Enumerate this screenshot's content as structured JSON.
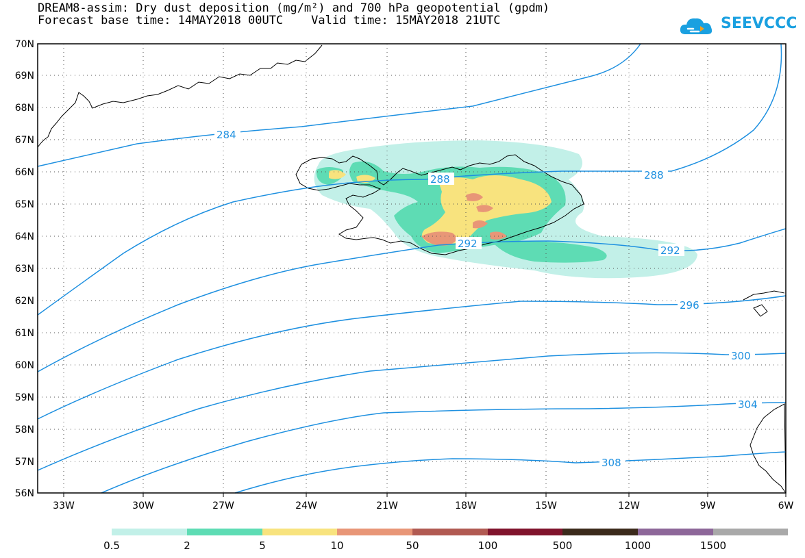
{
  "title": {
    "line1": "DREAM8-assim: Dry dust deposition (mg/m²) and 700 hPa geopotential (gpdm)",
    "line2": "Forecast base time: 14MAY2018 00UTC    Valid time: 15MAY2018 21UTC"
  },
  "logo": {
    "text": "SEEVCCC"
  },
  "colors": {
    "contour": "#1e90e0",
    "coast": "#000000",
    "accent": "#1aa0e0"
  },
  "axes": {
    "lat_labels": [
      "70N",
      "69N",
      "68N",
      "67N",
      "66N",
      "65N",
      "64N",
      "63N",
      "62N",
      "61N",
      "60N",
      "59N",
      "58N",
      "57N",
      "56N"
    ],
    "lon_labels": [
      "33W",
      "30W",
      "27W",
      "24W",
      "21W",
      "18W",
      "15W",
      "12W",
      "9W",
      "6W"
    ]
  },
  "contours": {
    "levels": [
      "284",
      "288",
      "292",
      "296",
      "300",
      "304",
      "308"
    ]
  },
  "legend": {
    "labels": [
      "0.5",
      "2",
      "5",
      "10",
      "50",
      "100",
      "500",
      "1000",
      "1500"
    ],
    "colors": [
      "#c2f0e8",
      "#5edcb4",
      "#f8e37e",
      "#e89677",
      "#b15a52",
      "#80132c",
      "#3b2a1b",
      "#8d6799",
      "#a9a9a9"
    ]
  }
}
